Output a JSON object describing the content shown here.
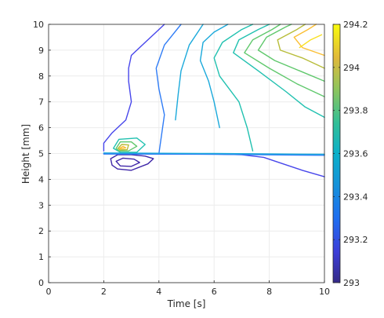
{
  "chart_data": {
    "type": "contour",
    "xlabel": "Time [s]",
    "ylabel": "Height [mm]",
    "xlim": [
      0,
      10
    ],
    "ylim": [
      0,
      10
    ],
    "xticks": [
      0,
      2,
      4,
      6,
      8,
      10
    ],
    "yticks": [
      0,
      1,
      2,
      3,
      4,
      5,
      6,
      7,
      8,
      9,
      10
    ],
    "grid": true,
    "colormap": "parula",
    "colorbar": {
      "range": [
        293,
        294.2
      ],
      "ticks": [
        293,
        293.2,
        293.4,
        293.6,
        293.8,
        294,
        294.2
      ],
      "tick_labels": [
        "293",
        "293.2",
        "293.4",
        "293.6",
        "293.8",
        "294",
        "294.2"
      ]
    },
    "colors": {
      "c0": "#3e26a8",
      "c1": "#4746eb",
      "c2": "#2f7cf6",
      "c3": "#1aa9db",
      "c4": "#21c1b0",
      "c5": "#5fc86c",
      "c6": "#b8bd3a",
      "c7": "#fbbf34",
      "c8": "#f9e021"
    },
    "contours": [
      {
        "level": 293.05,
        "color": "c0",
        "points": [
          [
            2.25,
            4.8
          ],
          [
            2.5,
            4.95
          ],
          [
            3.0,
            4.95
          ],
          [
            3.5,
            4.9
          ],
          [
            3.8,
            4.8
          ],
          [
            3.6,
            4.6
          ],
          [
            3.0,
            4.35
          ],
          [
            2.5,
            4.4
          ],
          [
            2.3,
            4.55
          ],
          [
            2.25,
            4.8
          ]
        ]
      },
      {
        "level": 293.1,
        "color": "c0",
        "points": [
          [
            2.45,
            4.7
          ],
          [
            2.7,
            4.82
          ],
          [
            3.1,
            4.78
          ],
          [
            3.3,
            4.65
          ],
          [
            3.0,
            4.5
          ],
          [
            2.6,
            4.52
          ],
          [
            2.45,
            4.7
          ]
        ]
      },
      {
        "level": 293.15,
        "color": "c1",
        "points": [
          [
            2.0,
            5.0
          ],
          [
            4.0,
            4.98
          ],
          [
            6.0,
            4.98
          ],
          [
            7.0,
            4.95
          ],
          [
            7.8,
            4.85
          ],
          [
            8.5,
            4.6
          ],
          [
            9.2,
            4.35
          ],
          [
            10,
            4.1
          ]
        ]
      },
      {
        "level": 293.2,
        "color": "c1",
        "points": [
          [
            2.0,
            5.1
          ],
          [
            2.0,
            5.4
          ],
          [
            2.3,
            5.8
          ],
          [
            2.8,
            6.3
          ],
          [
            3.0,
            7.0
          ],
          [
            2.9,
            7.8
          ],
          [
            2.9,
            8.3
          ],
          [
            3.0,
            8.8
          ],
          [
            3.5,
            9.3
          ],
          [
            3.9,
            9.7
          ],
          [
            4.2,
            10
          ]
        ]
      },
      {
        "level": 293.25,
        "color": "c2",
        "points": [
          [
            2.0,
            4.98
          ],
          [
            6,
            4.97
          ],
          [
            10,
            4.93
          ]
        ]
      },
      {
        "level": 293.3,
        "color": "c2",
        "points": [
          [
            4.0,
            5.0
          ],
          [
            4.2,
            6.5
          ],
          [
            4.0,
            7.5
          ],
          [
            3.9,
            8.3
          ],
          [
            4.2,
            9.2
          ],
          [
            4.5,
            9.6
          ],
          [
            4.8,
            10
          ]
        ]
      },
      {
        "level": 293.4,
        "color": "c3",
        "points": [
          [
            2.0,
            5.02
          ],
          [
            6,
            5.0
          ],
          [
            10,
            4.97
          ]
        ]
      },
      {
        "level": 293.45,
        "color": "c3",
        "points": [
          [
            4.6,
            6.3
          ],
          [
            4.7,
            7.3
          ],
          [
            4.8,
            8.2
          ],
          [
            5.1,
            9.2
          ],
          [
            5.6,
            10
          ]
        ]
      },
      {
        "level": 293.55,
        "color": "c4",
        "points": [
          [
            2.35,
            5.2
          ],
          [
            2.55,
            5.55
          ],
          [
            3.2,
            5.6
          ],
          [
            3.5,
            5.35
          ],
          [
            3.2,
            5.05
          ],
          [
            2.6,
            5.05
          ],
          [
            2.35,
            5.2
          ]
        ]
      },
      {
        "level": 293.5,
        "color": "c3",
        "points": [
          [
            6.2,
            6.0
          ],
          [
            6.0,
            7.0
          ],
          [
            5.8,
            7.8
          ],
          [
            5.5,
            8.6
          ],
          [
            5.6,
            9.3
          ],
          [
            6.0,
            9.7
          ],
          [
            6.5,
            10
          ]
        ]
      },
      {
        "level": 293.6,
        "color": "c4",
        "points": [
          [
            7.4,
            5.1
          ],
          [
            7.2,
            6.0
          ],
          [
            6.9,
            7.0
          ],
          [
            6.2,
            8.0
          ],
          [
            6.0,
            8.7
          ],
          [
            6.3,
            9.3
          ],
          [
            7.0,
            9.8
          ],
          [
            7.4,
            10
          ]
        ]
      },
      {
        "level": 293.65,
        "color": "c4",
        "points": [
          [
            10,
            6.4
          ],
          [
            9.3,
            6.8
          ],
          [
            8.6,
            7.4
          ],
          [
            7.6,
            8.2
          ],
          [
            6.7,
            8.9
          ],
          [
            6.9,
            9.4
          ],
          [
            7.6,
            9.8
          ],
          [
            8.0,
            10
          ]
        ]
      },
      {
        "level": 293.7,
        "color": "c5",
        "points": [
          [
            10,
            7.2
          ],
          [
            9.0,
            7.7
          ],
          [
            8.0,
            8.3
          ],
          [
            7.1,
            8.9
          ],
          [
            7.4,
            9.4
          ],
          [
            8.1,
            9.8
          ],
          [
            8.4,
            10
          ]
        ]
      },
      {
        "level": 293.8,
        "color": "c5",
        "points": [
          [
            10,
            7.8
          ],
          [
            9.1,
            8.2
          ],
          [
            8.2,
            8.6
          ],
          [
            7.6,
            9.0
          ],
          [
            7.9,
            9.5
          ],
          [
            8.6,
            9.9
          ],
          [
            8.8,
            10
          ]
        ]
      },
      {
        "level": 293.9,
        "color": "c6",
        "points": [
          [
            10,
            8.3
          ],
          [
            9.2,
            8.7
          ],
          [
            8.4,
            9.0
          ],
          [
            8.3,
            9.4
          ],
          [
            9.0,
            9.8
          ],
          [
            9.3,
            10
          ]
        ]
      },
      {
        "level": 294.0,
        "color": "c7",
        "points": [
          [
            10,
            8.8
          ],
          [
            9.2,
            9.1
          ],
          [
            8.9,
            9.5
          ],
          [
            9.4,
            9.8
          ],
          [
            9.7,
            10
          ]
        ]
      },
      {
        "level": 294.1,
        "color": "c8",
        "points": [
          [
            9.1,
            9.1
          ],
          [
            9.5,
            9.4
          ],
          [
            9.9,
            9.6
          ]
        ]
      },
      {
        "level": 293.65,
        "color": "c5",
        "points": [
          [
            2.45,
            5.2
          ],
          [
            2.6,
            5.45
          ],
          [
            3.0,
            5.45
          ],
          [
            3.2,
            5.28
          ],
          [
            2.9,
            5.1
          ],
          [
            2.55,
            5.1
          ],
          [
            2.45,
            5.2
          ]
        ]
      },
      {
        "level": 293.8,
        "color": "c6",
        "points": [
          [
            2.52,
            5.2
          ],
          [
            2.65,
            5.35
          ],
          [
            2.9,
            5.33
          ],
          [
            2.85,
            5.15
          ],
          [
            2.58,
            5.14
          ],
          [
            2.52,
            5.2
          ]
        ]
      },
      {
        "level": 294.0,
        "color": "c7",
        "points": [
          [
            2.58,
            5.2
          ],
          [
            2.7,
            5.28
          ],
          [
            2.8,
            5.22
          ],
          [
            2.6,
            5.18
          ],
          [
            2.58,
            5.2
          ]
        ]
      }
    ]
  }
}
